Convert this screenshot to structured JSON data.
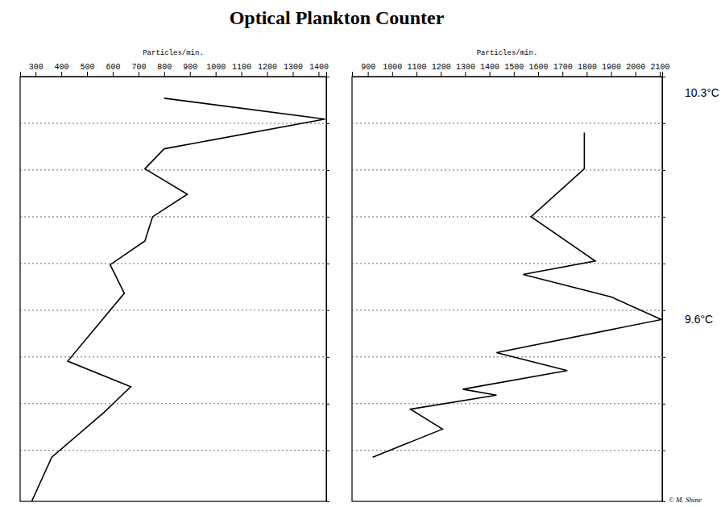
{
  "chart_data": [
    {
      "type": "line",
      "orientation": "horizontal",
      "title": "Optical Plankton Counter",
      "x_label": "Particles/min.",
      "xlim": [
        240,
        1430
      ],
      "xticks": [
        300,
        400,
        500,
        600,
        700,
        800,
        900,
        1000,
        1100,
        1200,
        1300,
        1400
      ],
      "ylim": [
        0,
        100
      ],
      "yticks": [
        11,
        22,
        33,
        44,
        55,
        66,
        77,
        88
      ],
      "grid": true,
      "tick_labels": "x",
      "series": [
        {
          "color": "#000000",
          "values": [
            800,
            1425,
            800,
            725,
            890,
            755,
            725,
            590,
            645,
            425,
            670,
            567,
            363,
            285
          ],
          "y": [
            5.1,
            10.0,
            17.0,
            21.7,
            27.7,
            33.0,
            38.7,
            44.3,
            51.0,
            67.0,
            73.0,
            79.0,
            89.6,
            100
          ]
        }
      ]
    },
    {
      "type": "line",
      "orientation": "horizontal",
      "x_label": "Particles/min.",
      "xlim": [
        835,
        2110
      ],
      "xticks": [
        900,
        1000,
        1100,
        1200,
        1300,
        1400,
        1500,
        1600,
        1700,
        1800,
        1900,
        2000,
        2100
      ],
      "ylim": [
        0,
        100
      ],
      "yticks": [
        11,
        22,
        33,
        44,
        55,
        66,
        77,
        88
      ],
      "grid": true,
      "tick_labels": "x",
      "series": [
        {
          "color": "#000000",
          "values": [
            1790,
            1790,
            1571,
            1835,
            1538,
            1902,
            2107,
            1429,
            1720,
            1290,
            1429,
            1075,
            1207,
            920
          ],
          "y": [
            13.2,
            21.7,
            33.0,
            43.4,
            46.6,
            51.9,
            57.2,
            65.0,
            69.2,
            73.6,
            75.0,
            78.3,
            83.0,
            89.6
          ]
        }
      ],
      "annotations": [
        {
          "text": "10.3°C",
          "y": 3.8
        },
        {
          "text": "9.6°C",
          "y": 57.2
        }
      ],
      "credit": "© M. Shine"
    }
  ]
}
